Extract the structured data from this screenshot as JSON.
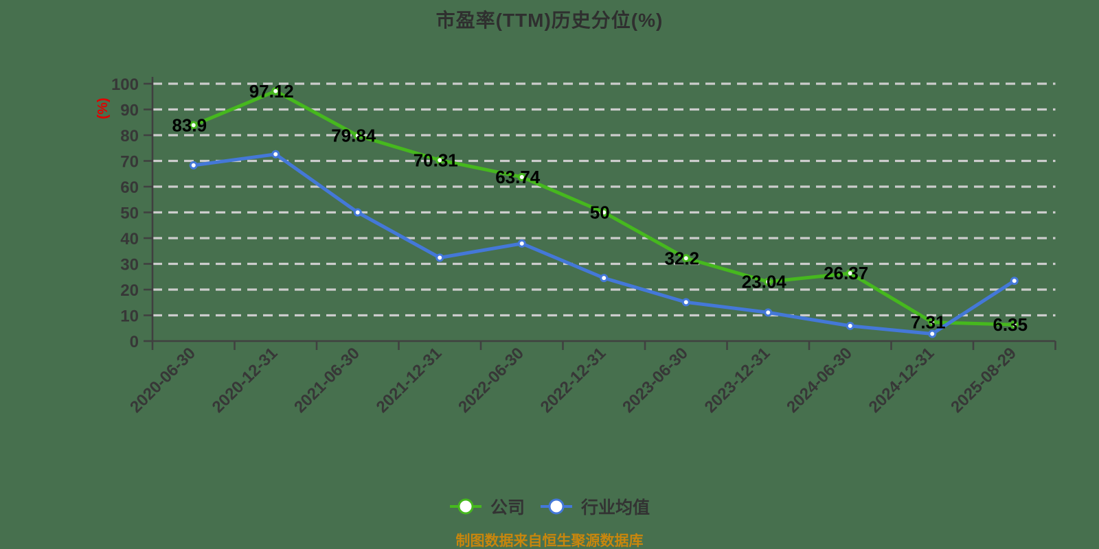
{
  "chart_data": {
    "type": "line",
    "title": "市盈率(TTM)历史分位(%)",
    "ylabel": "(%)",
    "xlabel": "",
    "ylim": [
      0,
      100
    ],
    "ytick_interval": 10,
    "grid": "horizontal-dashed",
    "legend_position": "bottom-center",
    "categories": [
      "2020-06-30",
      "2020-12-31",
      "2021-06-30",
      "2021-12-31",
      "2022-06-30",
      "2022-12-31",
      "2023-06-30",
      "2023-12-31",
      "2024-06-30",
      "2024-12-31",
      "2025-08-29"
    ],
    "series": [
      {
        "name": "公司",
        "color": "#46b81e",
        "marker": "circle-white-fill",
        "values": [
          83.9,
          97.12,
          79.84,
          70.31,
          63.74,
          50,
          32.2,
          23.04,
          26.37,
          7.31,
          6.35
        ],
        "point_labels": [
          "83.9",
          "97.12",
          "79.84",
          "70.31",
          "63.74",
          "50",
          "32.2",
          "23.04",
          "26.37",
          "7.31",
          "6.35"
        ]
      },
      {
        "name": "行业均值",
        "color": "#4478d8",
        "marker": "circle-white-fill",
        "values": [
          68.3,
          72.6,
          50,
          32.4,
          37.9,
          24.5,
          15.1,
          11.1,
          5.9,
          2.8,
          23.4
        ],
        "point_labels": []
      }
    ],
    "source_note": "制图数据来自恒生聚源数据库"
  },
  "colors": {
    "background": "#47704e",
    "gridline": "#cccccc",
    "axis": "#404040",
    "tick_label": "#373737",
    "data_label": "#000000",
    "title": "#2f2f2f",
    "ylabel": "#e00000",
    "legend_text": "#333333",
    "source_note": "#c8860d"
  }
}
